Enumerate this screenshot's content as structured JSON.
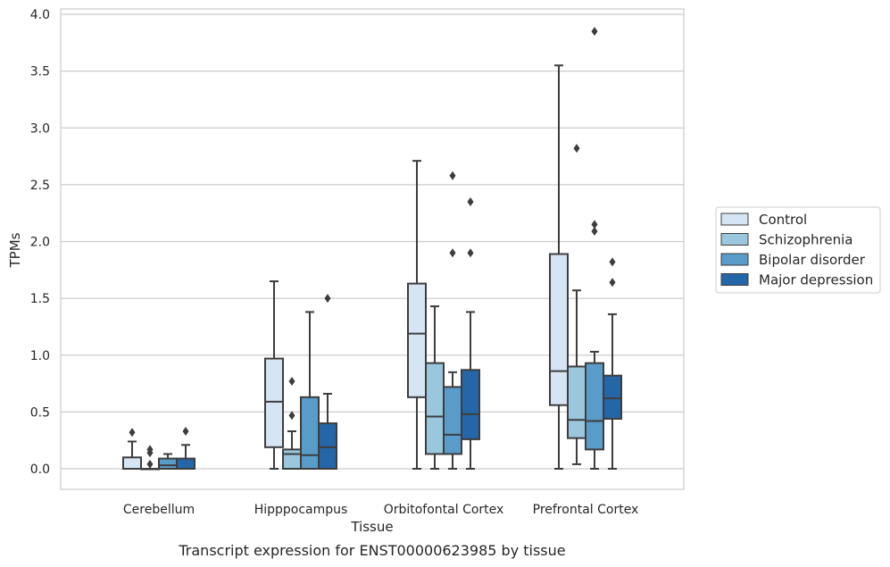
{
  "caption": "Transcript expression for ENST00000623985 by tissue",
  "chart_data": {
    "type": "box",
    "xlabel": "Tissue",
    "ylabel": "TPMs",
    "ylim": [
      -0.18,
      4.05
    ],
    "yticks": [
      "0.0",
      "0.5",
      "1.0",
      "1.5",
      "2.0",
      "2.5",
      "3.0",
      "3.5",
      "4.0"
    ],
    "grid": "horizontal",
    "legend_position": "right",
    "categories": [
      "Cerebellum",
      "Hipppocampus",
      "Orbitofontal Cortex",
      "Prefrontal Cortex"
    ],
    "series": [
      {
        "name": "Control",
        "color": "#d6e5f4",
        "boxes": [
          {
            "whislo": 0.0,
            "q1": 0.0,
            "med": 0.0,
            "q3": 0.1,
            "whishi": 0.24,
            "fliers": [
              0.32
            ]
          },
          {
            "whislo": 0.0,
            "q1": 0.19,
            "med": 0.59,
            "q3": 0.97,
            "whishi": 1.65,
            "fliers": []
          },
          {
            "whislo": 0.0,
            "q1": 0.63,
            "med": 1.19,
            "q3": 1.63,
            "whishi": 2.71,
            "fliers": []
          },
          {
            "whislo": 0.0,
            "q1": 0.56,
            "med": 0.86,
            "q3": 1.89,
            "whishi": 3.55,
            "fliers": []
          }
        ]
      },
      {
        "name": "Schizophrenia",
        "color": "#9bc7de",
        "boxes": [
          {
            "whislo": 0.0,
            "q1": 0.0,
            "med": 0.0,
            "q3": 0.0,
            "whishi": 0.0,
            "fliers": [
              0.04,
              0.14,
              0.17
            ]
          },
          {
            "whislo": 0.0,
            "q1": 0.0,
            "med": 0.13,
            "q3": 0.17,
            "whishi": 0.33,
            "fliers": [
              0.47,
              0.77
            ]
          },
          {
            "whislo": 0.0,
            "q1": 0.13,
            "med": 0.46,
            "q3": 0.93,
            "whishi": 1.43,
            "fliers": []
          },
          {
            "whislo": 0.04,
            "q1": 0.27,
            "med": 0.43,
            "q3": 0.9,
            "whishi": 1.57,
            "fliers": [
              2.82
            ]
          }
        ]
      },
      {
        "name": "Bipolar disorder",
        "color": "#5a9cc9",
        "boxes": [
          {
            "whislo": 0.0,
            "q1": 0.0,
            "med": 0.03,
            "q3": 0.09,
            "whishi": 0.13,
            "fliers": []
          },
          {
            "whislo": 0.0,
            "q1": 0.0,
            "med": 0.12,
            "q3": 0.63,
            "whishi": 1.38,
            "fliers": []
          },
          {
            "whislo": 0.0,
            "q1": 0.13,
            "med": 0.3,
            "q3": 0.72,
            "whishi": 0.85,
            "fliers": [
              1.9,
              2.58
            ]
          },
          {
            "whislo": 0.0,
            "q1": 0.17,
            "med": 0.42,
            "q3": 0.93,
            "whishi": 1.03,
            "fliers": [
              2.09,
              2.15,
              3.85
            ]
          }
        ]
      },
      {
        "name": "Major depression",
        "color": "#2466a8",
        "boxes": [
          {
            "whislo": 0.0,
            "q1": 0.0,
            "med": 0.0,
            "q3": 0.09,
            "whishi": 0.21,
            "fliers": [
              0.33
            ]
          },
          {
            "whislo": 0.0,
            "q1": 0.0,
            "med": 0.19,
            "q3": 0.4,
            "whishi": 0.66,
            "fliers": [
              1.5
            ]
          },
          {
            "whislo": 0.0,
            "q1": 0.26,
            "med": 0.48,
            "q3": 0.87,
            "whishi": 1.38,
            "fliers": [
              1.9,
              2.35
            ]
          },
          {
            "whislo": 0.0,
            "q1": 0.44,
            "med": 0.62,
            "q3": 0.82,
            "whishi": 1.36,
            "fliers": [
              1.64,
              1.82
            ]
          }
        ]
      }
    ]
  }
}
